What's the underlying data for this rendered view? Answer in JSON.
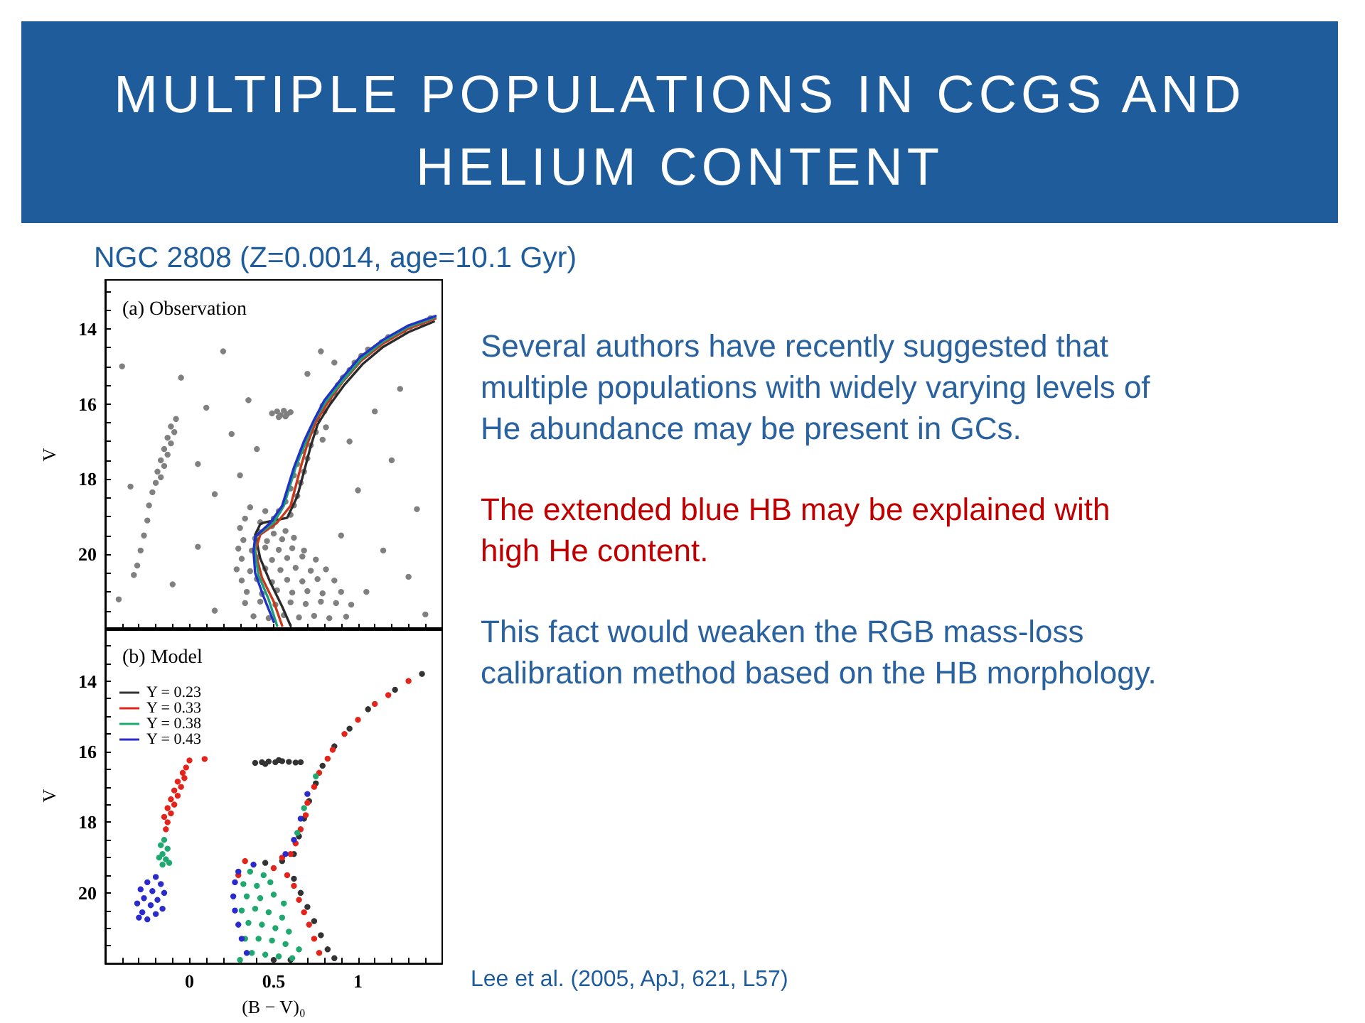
{
  "chart_data": [
    {
      "type": "scatter",
      "title": "MULTIPLE POPULATIONS IN CCGS AND HELIUM CONTENT",
      "subtitle": "NGC 2808 (Z=0.0014, age=10.1 Gyr)",
      "ylabel": "V",
      "annotations": [
        "(a) Observation"
      ],
      "xlim": [
        -0.5,
        1.5
      ],
      "xticks": [
        {
          "value": -0.4,
          "label": null
        },
        {
          "value": -0.3,
          "label": null
        },
        {
          "value": -0.2,
          "label": null
        },
        {
          "value": -0.1,
          "label": null
        },
        0,
        {
          "value": 0.1,
          "label": null
        },
        {
          "value": 0.2,
          "label": null
        },
        {
          "value": 0.3,
          "label": null
        },
        {
          "value": 0.4,
          "label": null
        },
        0.5,
        {
          "value": 0.6,
          "label": null
        },
        {
          "value": 0.7,
          "label": null
        },
        {
          "value": 0.8,
          "label": null
        },
        {
          "value": 0.9,
          "label": null
        },
        1,
        {
          "value": 1.1,
          "label": null
        },
        {
          "value": 1.2,
          "label": null
        },
        {
          "value": 1.3,
          "label": null
        },
        {
          "value": 1.4,
          "label": null
        }
      ],
      "ylim": [
        22,
        12.7
      ],
      "yticks": [
        {
          "value": 13,
          "label": null
        },
        {
          "value": 13.5,
          "label": null
        },
        14,
        {
          "value": 14.5,
          "label": null
        },
        {
          "value": 15,
          "label": null
        },
        {
          "value": 15.5,
          "label": null
        },
        16,
        {
          "value": 16.5,
          "label": null
        },
        {
          "value": 17,
          "label": null
        },
        {
          "value": 17.5,
          "label": null
        },
        18,
        {
          "value": 18.5,
          "label": null
        },
        {
          "value": 19,
          "label": null
        },
        {
          "value": 19.5,
          "label": null
        },
        20,
        {
          "value": 20.5,
          "label": null
        },
        {
          "value": 21,
          "label": null
        },
        {
          "value": 21.5,
          "label": null
        }
      ],
      "tick_labels": "y",
      "series": [
        {
          "color": "#808080",
          "marker": "circle",
          "x": [
            0.41,
            0.5,
            0.57,
            0.32,
            0.39,
            0.46,
            0.55,
            0.62,
            0.29,
            0.37,
            0.45,
            0.53,
            0.61,
            0.68,
            0.31,
            0.4,
            0.49,
            0.58,
            0.67,
            0.75,
            0.28,
            0.36,
            0.45,
            0.54,
            0.63,
            0.72,
            0.81,
            0.31,
            0.4,
            0.49,
            0.58,
            0.67,
            0.76,
            0.86,
            0.34,
            0.43,
            0.52,
            0.61,
            0.7,
            0.79,
            0.9,
            0.33,
            0.42,
            0.51,
            0.6,
            0.69,
            0.78,
            0.87,
            0.96,
            0.38,
            0.47,
            0.56,
            0.65,
            0.74,
            0.83,
            0.93,
            0.36,
            0.45,
            0.33,
            0.42,
            0.3,
            0.49,
            1.43,
            1.38,
            1.31,
            1.27,
            1.18,
            1.14,
            1.06,
            1.02,
            0.98,
            0.95,
            0.91,
            0.88,
            0.86,
            0.83,
            0.79,
            0.8,
            0.76,
            0.81,
            0.75,
            0.79,
            0.72,
            0.67,
            0.7,
            0.64,
            0.68,
            0.62,
            0.66,
            0.6,
            0.64,
            0.57,
            0.62,
            0.53,
            0.6,
            0.5,
            0.78,
            0.86,
            0.7,
            0.49,
            0.52,
            0.54,
            0.56,
            0.58,
            0.6,
            0.53,
            0.57,
            -0.08,
            -0.11,
            -0.09,
            -0.13,
            -0.11,
            -0.15,
            -0.13,
            -0.17,
            -0.15,
            -0.19,
            -0.17,
            -0.2,
            -0.22,
            -0.24,
            -0.25,
            -0.27,
            -0.29,
            -0.31,
            -0.33,
            -0.4,
            -0.05,
            0.2,
            0.35,
            0.1,
            0.25,
            0.4,
            0.05,
            0.3,
            -0.35,
            0.15,
            0.95,
            1.1,
            1.25,
            1.2,
            1.0,
            1.35,
            0.9,
            1.15,
            1.3,
            1.05,
            -0.1,
            0.05,
            -0.42,
            0.15,
            1.4
          ],
          "values": [
            19.4,
            19.45,
            19.38,
            19.62,
            19.58,
            19.65,
            19.6,
            19.56,
            19.85,
            19.9,
            19.82,
            19.88,
            19.84,
            19.9,
            20.12,
            20.08,
            20.15,
            20.1,
            20.06,
            20.14,
            20.4,
            20.45,
            20.38,
            20.42,
            20.36,
            20.44,
            20.4,
            20.7,
            20.66,
            20.74,
            20.68,
            20.72,
            20.66,
            20.7,
            21.0,
            21.05,
            20.96,
            21.02,
            20.98,
            21.04,
            21.0,
            21.3,
            21.26,
            21.34,
            21.28,
            21.32,
            21.26,
            21.3,
            21.34,
            21.65,
            21.7,
            21.62,
            21.68,
            21.64,
            21.7,
            21.66,
            18.75,
            18.85,
            19.05,
            19.15,
            19.3,
            19.25,
            13.72,
            13.86,
            13.95,
            14.05,
            14.22,
            14.36,
            14.55,
            14.72,
            14.9,
            15.1,
            15.3,
            15.5,
            15.7,
            15.9,
            16.05,
            16.2,
            16.4,
            16.62,
            16.75,
            16.95,
            17.1,
            17.25,
            17.45,
            17.6,
            17.8,
            17.9,
            18.1,
            18.25,
            18.45,
            18.6,
            18.7,
            18.85,
            18.95,
            19.05,
            14.6,
            14.9,
            15.2,
            16.25,
            16.2,
            16.3,
            16.18,
            16.27,
            16.22,
            16.35,
            16.33,
            16.4,
            16.6,
            16.75,
            16.9,
            17.05,
            17.2,
            17.35,
            17.5,
            17.65,
            17.8,
            17.95,
            18.1,
            18.35,
            18.7,
            19.1,
            19.5,
            19.9,
            20.3,
            20.55,
            15.0,
            15.3,
            14.6,
            15.9,
            16.1,
            16.8,
            17.2,
            17.6,
            17.9,
            18.2,
            18.4,
            17.0,
            16.2,
            15.6,
            17.5,
            18.3,
            18.8,
            19.5,
            19.9,
            20.6,
            21.0,
            20.8,
            19.8,
            21.2,
            21.5,
            21.6
          ]
        },
        {
          "type": "line",
          "color": "#2b2b2b",
          "x": [
            1.45,
            1.3,
            1.15,
            1.03,
            0.92,
            0.83,
            0.76,
            0.72,
            0.69,
            0.64,
            0.58,
            0.44,
            0.42,
            0.39,
            0.42,
            0.48,
            0.55,
            0.6
          ],
          "values": [
            13.81,
            14.09,
            14.48,
            14.93,
            15.49,
            16.04,
            16.55,
            17.12,
            17.63,
            18.46,
            19.03,
            19.16,
            19.2,
            19.48,
            20.11,
            20.75,
            21.39,
            21.9
          ]
        },
        {
          "type": "line",
          "color": "#c8361c",
          "x": [
            1.46,
            1.3,
            1.15,
            1.02,
            0.91,
            0.82,
            0.75,
            0.7,
            0.66,
            0.6,
            0.52,
            0.42,
            0.39,
            0.43,
            0.5,
            0.55
          ],
          "values": [
            13.73,
            14.0,
            14.39,
            14.85,
            15.41,
            15.97,
            16.48,
            17.06,
            17.69,
            18.71,
            19.16,
            19.48,
            19.92,
            20.62,
            21.26,
            21.9
          ]
        },
        {
          "type": "line",
          "color": "#1e9e78",
          "x": [
            1.46,
            1.3,
            1.15,
            1.02,
            0.91,
            0.81,
            0.74,
            0.69,
            0.63,
            0.56,
            0.5,
            0.39,
            0.39,
            0.41,
            0.47,
            0.52
          ],
          "values": [
            13.69,
            13.95,
            14.34,
            14.8,
            15.38,
            15.94,
            16.45,
            17.02,
            17.69,
            18.71,
            19.16,
            19.54,
            19.99,
            20.56,
            21.2,
            21.9
          ]
        },
        {
          "type": "line",
          "color": "#2230c8",
          "x": [
            1.46,
            1.3,
            1.15,
            1.01,
            0.9,
            0.8,
            0.74,
            0.68,
            0.62,
            0.55,
            0.48,
            0.39,
            0.38,
            0.39,
            0.44,
            0.5
          ],
          "values": [
            13.66,
            13.91,
            14.29,
            14.76,
            15.34,
            15.91,
            16.42,
            16.99,
            17.69,
            18.71,
            19.16,
            19.54,
            19.92,
            20.5,
            21.13,
            21.8
          ]
        }
      ]
    },
    {
      "type": "scatter",
      "xlabel": "(B − V)₀",
      "ylabel": "V",
      "annotations": [
        "(b) Model",
        "Lee et al. (2005, ApJ, 621, L57)"
      ],
      "xlim": [
        -0.5,
        1.5
      ],
      "xticks": [
        {
          "value": -0.4,
          "label": null
        },
        {
          "value": -0.3,
          "label": null
        },
        {
          "value": -0.2,
          "label": null
        },
        {
          "value": -0.1,
          "label": null
        },
        0,
        {
          "value": 0.1,
          "label": null
        },
        {
          "value": 0.2,
          "label": null
        },
        {
          "value": 0.3,
          "label": null
        },
        {
          "value": 0.4,
          "label": null
        },
        0.5,
        {
          "value": 0.6,
          "label": null
        },
        {
          "value": 0.7,
          "label": null
        },
        {
          "value": 0.8,
          "label": null
        },
        {
          "value": 0.9,
          "label": null
        },
        1,
        {
          "value": 1.1,
          "label": null
        },
        {
          "value": 1.2,
          "label": null
        },
        {
          "value": 1.3,
          "label": null
        },
        {
          "value": 1.4,
          "label": null
        }
      ],
      "ylim": [
        22,
        12.5
      ],
      "yticks": [
        {
          "value": 13,
          "label": null
        },
        {
          "value": 13.5,
          "label": null
        },
        14,
        {
          "value": 14.5,
          "label": null
        },
        {
          "value": 15,
          "label": null
        },
        {
          "value": 15.5,
          "label": null
        },
        16,
        {
          "value": 16.5,
          "label": null
        },
        {
          "value": 17,
          "label": null
        },
        {
          "value": 17.5,
          "label": null
        },
        18,
        {
          "value": 18.5,
          "label": null
        },
        {
          "value": 19,
          "label": null
        },
        {
          "value": 19.5,
          "label": null
        },
        20,
        {
          "value": 20.5,
          "label": null
        },
        {
          "value": 21,
          "label": null
        },
        {
          "value": 21.5,
          "label": null
        }
      ],
      "legend": "top left",
      "marker": "circle",
      "series": [
        {
          "name": "Y = 0.23",
          "color": "#333333",
          "x": [
            0.39,
            0.43,
            0.47,
            0.51,
            0.55,
            0.59,
            0.63,
            0.66,
            0.45,
            0.53,
            1.38,
            1.22,
            1.06,
            0.95,
            0.86,
            0.79,
            0.75,
            0.71,
            0.68,
            0.65,
            0.62,
            0.62,
            0.66,
            0.7,
            0.74,
            0.78,
            0.82,
            0.86,
            0.6,
            0.5,
            0.55,
            0.45
          ],
          "values": [
            16.32,
            16.3,
            16.28,
            16.3,
            16.27,
            16.29,
            16.31,
            16.3,
            16.35,
            16.24,
            13.8,
            14.25,
            14.8,
            15.35,
            15.85,
            16.4,
            16.9,
            17.4,
            17.9,
            18.4,
            18.9,
            19.6,
            20.0,
            20.4,
            20.8,
            21.2,
            21.6,
            21.85,
            21.9,
            21.9,
            19.1,
            19.15
          ]
        },
        {
          "name": "Y = 0.33",
          "color": "#e3241b",
          "x": [
            0.0,
            -0.02,
            -0.04,
            -0.03,
            -0.07,
            -0.05,
            -0.09,
            -0.07,
            -0.11,
            -0.09,
            -0.13,
            -0.11,
            -0.15,
            -0.13,
            -0.14,
            0.09,
            1.3,
            1.18,
            1.1,
            1.0,
            0.92,
            0.85,
            0.82,
            0.77,
            0.74,
            0.7,
            0.69,
            0.66,
            0.63,
            0.6,
            0.55,
            0.58,
            0.62,
            0.65,
            0.68,
            0.71,
            0.74,
            0.77,
            0.5,
            0.33,
            0.29
          ],
          "values": [
            16.25,
            16.45,
            16.6,
            16.75,
            16.85,
            17.0,
            17.1,
            17.25,
            17.35,
            17.5,
            17.6,
            17.75,
            17.85,
            18.0,
            18.2,
            16.21,
            14.0,
            14.4,
            14.65,
            15.1,
            15.5,
            15.95,
            16.2,
            16.6,
            17.0,
            17.45,
            17.8,
            18.2,
            18.6,
            18.9,
            19.0,
            19.5,
            19.8,
            20.2,
            20.55,
            20.9,
            21.3,
            21.7,
            19.3,
            19.1,
            19.5
          ]
        },
        {
          "name": "Y = 0.38",
          "color": "#1fa86f",
          "x": [
            -0.15,
            -0.17,
            -0.13,
            -0.16,
            -0.18,
            -0.14,
            -0.16,
            -0.12,
            0.36,
            0.44,
            0.32,
            0.4,
            0.48,
            0.34,
            0.42,
            0.5,
            0.56,
            0.31,
            0.39,
            0.47,
            0.55,
            0.35,
            0.43,
            0.51,
            0.59,
            0.33,
            0.41,
            0.49,
            0.57,
            0.65,
            0.37,
            0.45,
            0.53,
            0.61,
            0.3,
            0.75,
            0.68,
            0.64
          ],
          "values": [
            18.5,
            18.65,
            18.75,
            18.9,
            19.0,
            19.05,
            19.2,
            19.15,
            19.4,
            19.5,
            19.75,
            19.8,
            19.7,
            20.1,
            20.15,
            20.05,
            20.3,
            20.5,
            20.45,
            20.55,
            20.7,
            20.85,
            20.9,
            21.0,
            21.1,
            21.3,
            21.3,
            21.35,
            21.45,
            21.6,
            21.7,
            21.75,
            21.8,
            21.85,
            21.9,
            16.7,
            17.6,
            18.3
          ]
        },
        {
          "name": "Y = 0.43",
          "color": "#2b2bcc",
          "x": [
            -0.2,
            -0.25,
            -0.17,
            -0.29,
            -0.22,
            -0.15,
            -0.27,
            -0.19,
            -0.31,
            -0.23,
            -0.16,
            -0.28,
            -0.2,
            -0.25,
            -0.3,
            0.29,
            0.27,
            0.26,
            0.27,
            0.29,
            0.31,
            0.34,
            0.38,
            0.7,
            0.66,
            0.62,
            0.57
          ],
          "values": [
            19.55,
            19.7,
            19.75,
            19.9,
            19.95,
            20.0,
            20.15,
            20.2,
            20.3,
            20.35,
            20.45,
            20.55,
            20.6,
            20.75,
            20.7,
            19.4,
            19.7,
            20.1,
            20.5,
            20.9,
            21.3,
            21.7,
            19.2,
            17.2,
            17.9,
            18.5,
            18.9
          ]
        }
      ]
    },
    {
      "type": "other",
      "annotations": [
        "Several authors have recently suggested that multiple populations with widely varying levels of He abundance may be present in GCs.",
        "The extended blue HB may be explained with high He content.",
        "This fact would weaken the RGB mass-loss calibration method based on the HB morphology."
      ]
    }
  ]
}
